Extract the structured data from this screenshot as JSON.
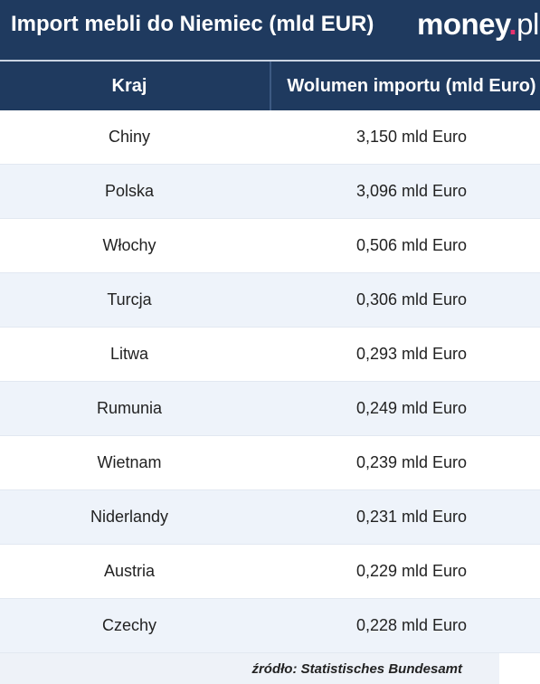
{
  "header": {
    "title": "Import mebli do Niemiec (mld EUR)",
    "logo": [
      "money",
      ".",
      "pl"
    ]
  },
  "table": {
    "columns": [
      "Kraj",
      "Wolumen importu (mld Euro)"
    ],
    "rows": [
      [
        "Chiny",
        "3,150 mld Euro"
      ],
      [
        "Polska",
        "3,096 mld Euro"
      ],
      [
        "Włochy",
        "0,506 mld Euro"
      ],
      [
        "Turcja",
        "0,306 mld Euro"
      ],
      [
        "Litwa",
        "0,293 mld Euro"
      ],
      [
        "Rumunia",
        "0,249 mld Euro"
      ],
      [
        "Wietnam",
        "0,239 mld Euro"
      ],
      [
        "Niderlandy",
        "0,231 mld Euro"
      ],
      [
        "Austria",
        "0,229 mld Euro"
      ],
      [
        "Czechy",
        "0,228 mld Euro"
      ]
    ]
  },
  "footer": {
    "source": "źródło: Statistisches Bundesamt"
  }
}
